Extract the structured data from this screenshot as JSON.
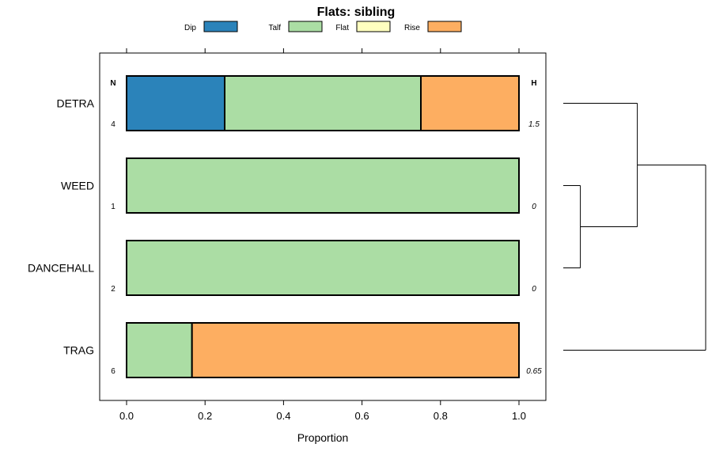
{
  "chart_data": {
    "type": "bar",
    "orientation": "horizontal",
    "stacked": true,
    "title": "Flats: sibling",
    "xlabel": "Proportion",
    "ylabel": "",
    "xlim": [
      -0.07,
      1.07
    ],
    "xticks": [
      0.0,
      0.2,
      0.4,
      0.6,
      0.8,
      1.0
    ],
    "xtick_labels": [
      "0.0",
      "0.2",
      "0.4",
      "0.6",
      "0.8",
      "1.0"
    ],
    "legend_position": "top",
    "column_headers": {
      "n": "N",
      "h": "H"
    },
    "series": [
      {
        "name": "Dip",
        "color": "#2b83ba"
      },
      {
        "name": "Talf",
        "color": "#abdda4"
      },
      {
        "name": "Flat",
        "color": "#ffffbf"
      },
      {
        "name": "Rise",
        "color": "#fdae61"
      }
    ],
    "categories": [
      "DETRA",
      "WEED",
      "DANCEHALL",
      "TRAG"
    ],
    "values": [
      [
        0.25,
        0.5,
        0,
        0.25
      ],
      [
        0,
        1,
        0,
        0
      ],
      [
        0,
        1,
        0,
        0
      ],
      [
        0,
        0.1667,
        0,
        0.8333
      ]
    ],
    "n": [
      "4",
      "1",
      "2",
      "6"
    ],
    "h": [
      "1.5",
      "0",
      "0",
      "0.65"
    ],
    "dendrogram": {
      "leaves": [
        "DETRA",
        "WEED",
        "DANCEHALL",
        "TRAG"
      ],
      "merges": [
        {
          "a": "WEED",
          "b": "DANCEHALL",
          "height": 0.12
        },
        {
          "a": "DETRA",
          "b": "WEED+DANCEHALL",
          "height": 0.52
        },
        {
          "a": "DETRA+WEED+DANCEHALL",
          "b": "TRAG",
          "height": 1.0
        }
      ]
    }
  }
}
